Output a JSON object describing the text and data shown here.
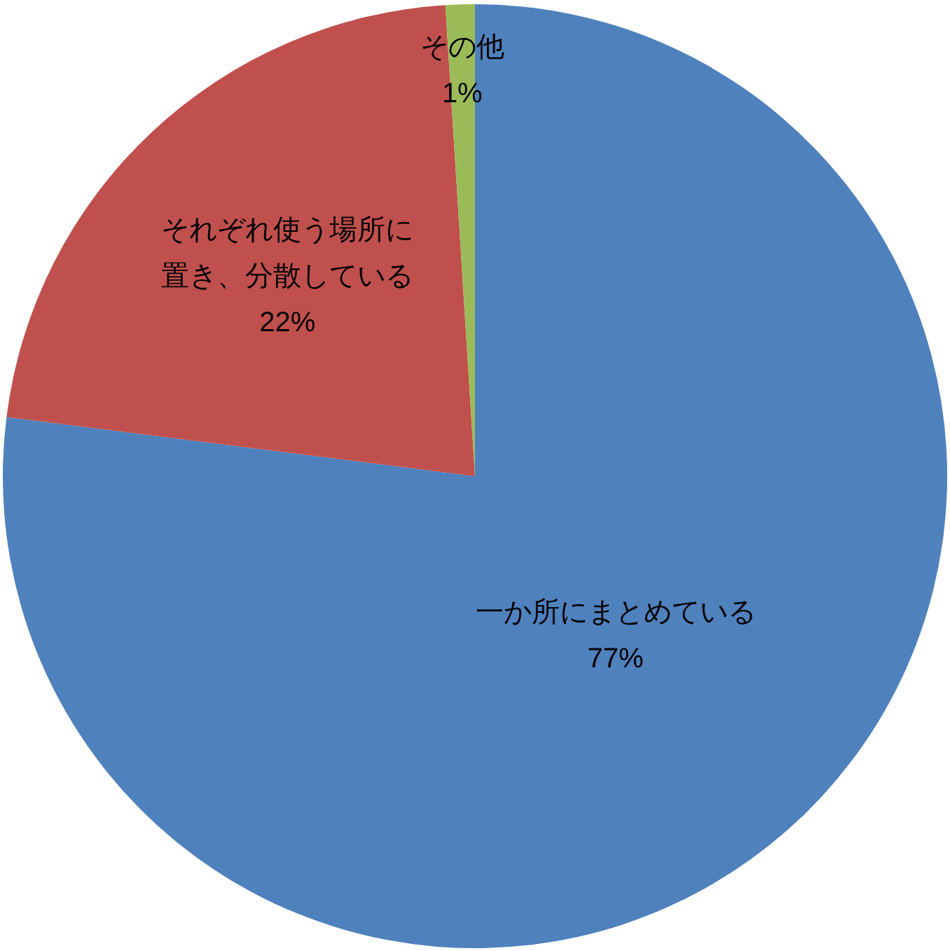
{
  "chart_data": {
    "type": "pie",
    "categories": [
      "一か所にまとめている",
      "それぞれ使う場所に置き、分散している",
      "その他"
    ],
    "values": [
      77,
      22,
      1
    ],
    "value_labels": [
      "77%",
      "22%",
      "1%"
    ],
    "colors": [
      "#4f81bd",
      "#c0504d",
      "#9bbb59"
    ]
  }
}
